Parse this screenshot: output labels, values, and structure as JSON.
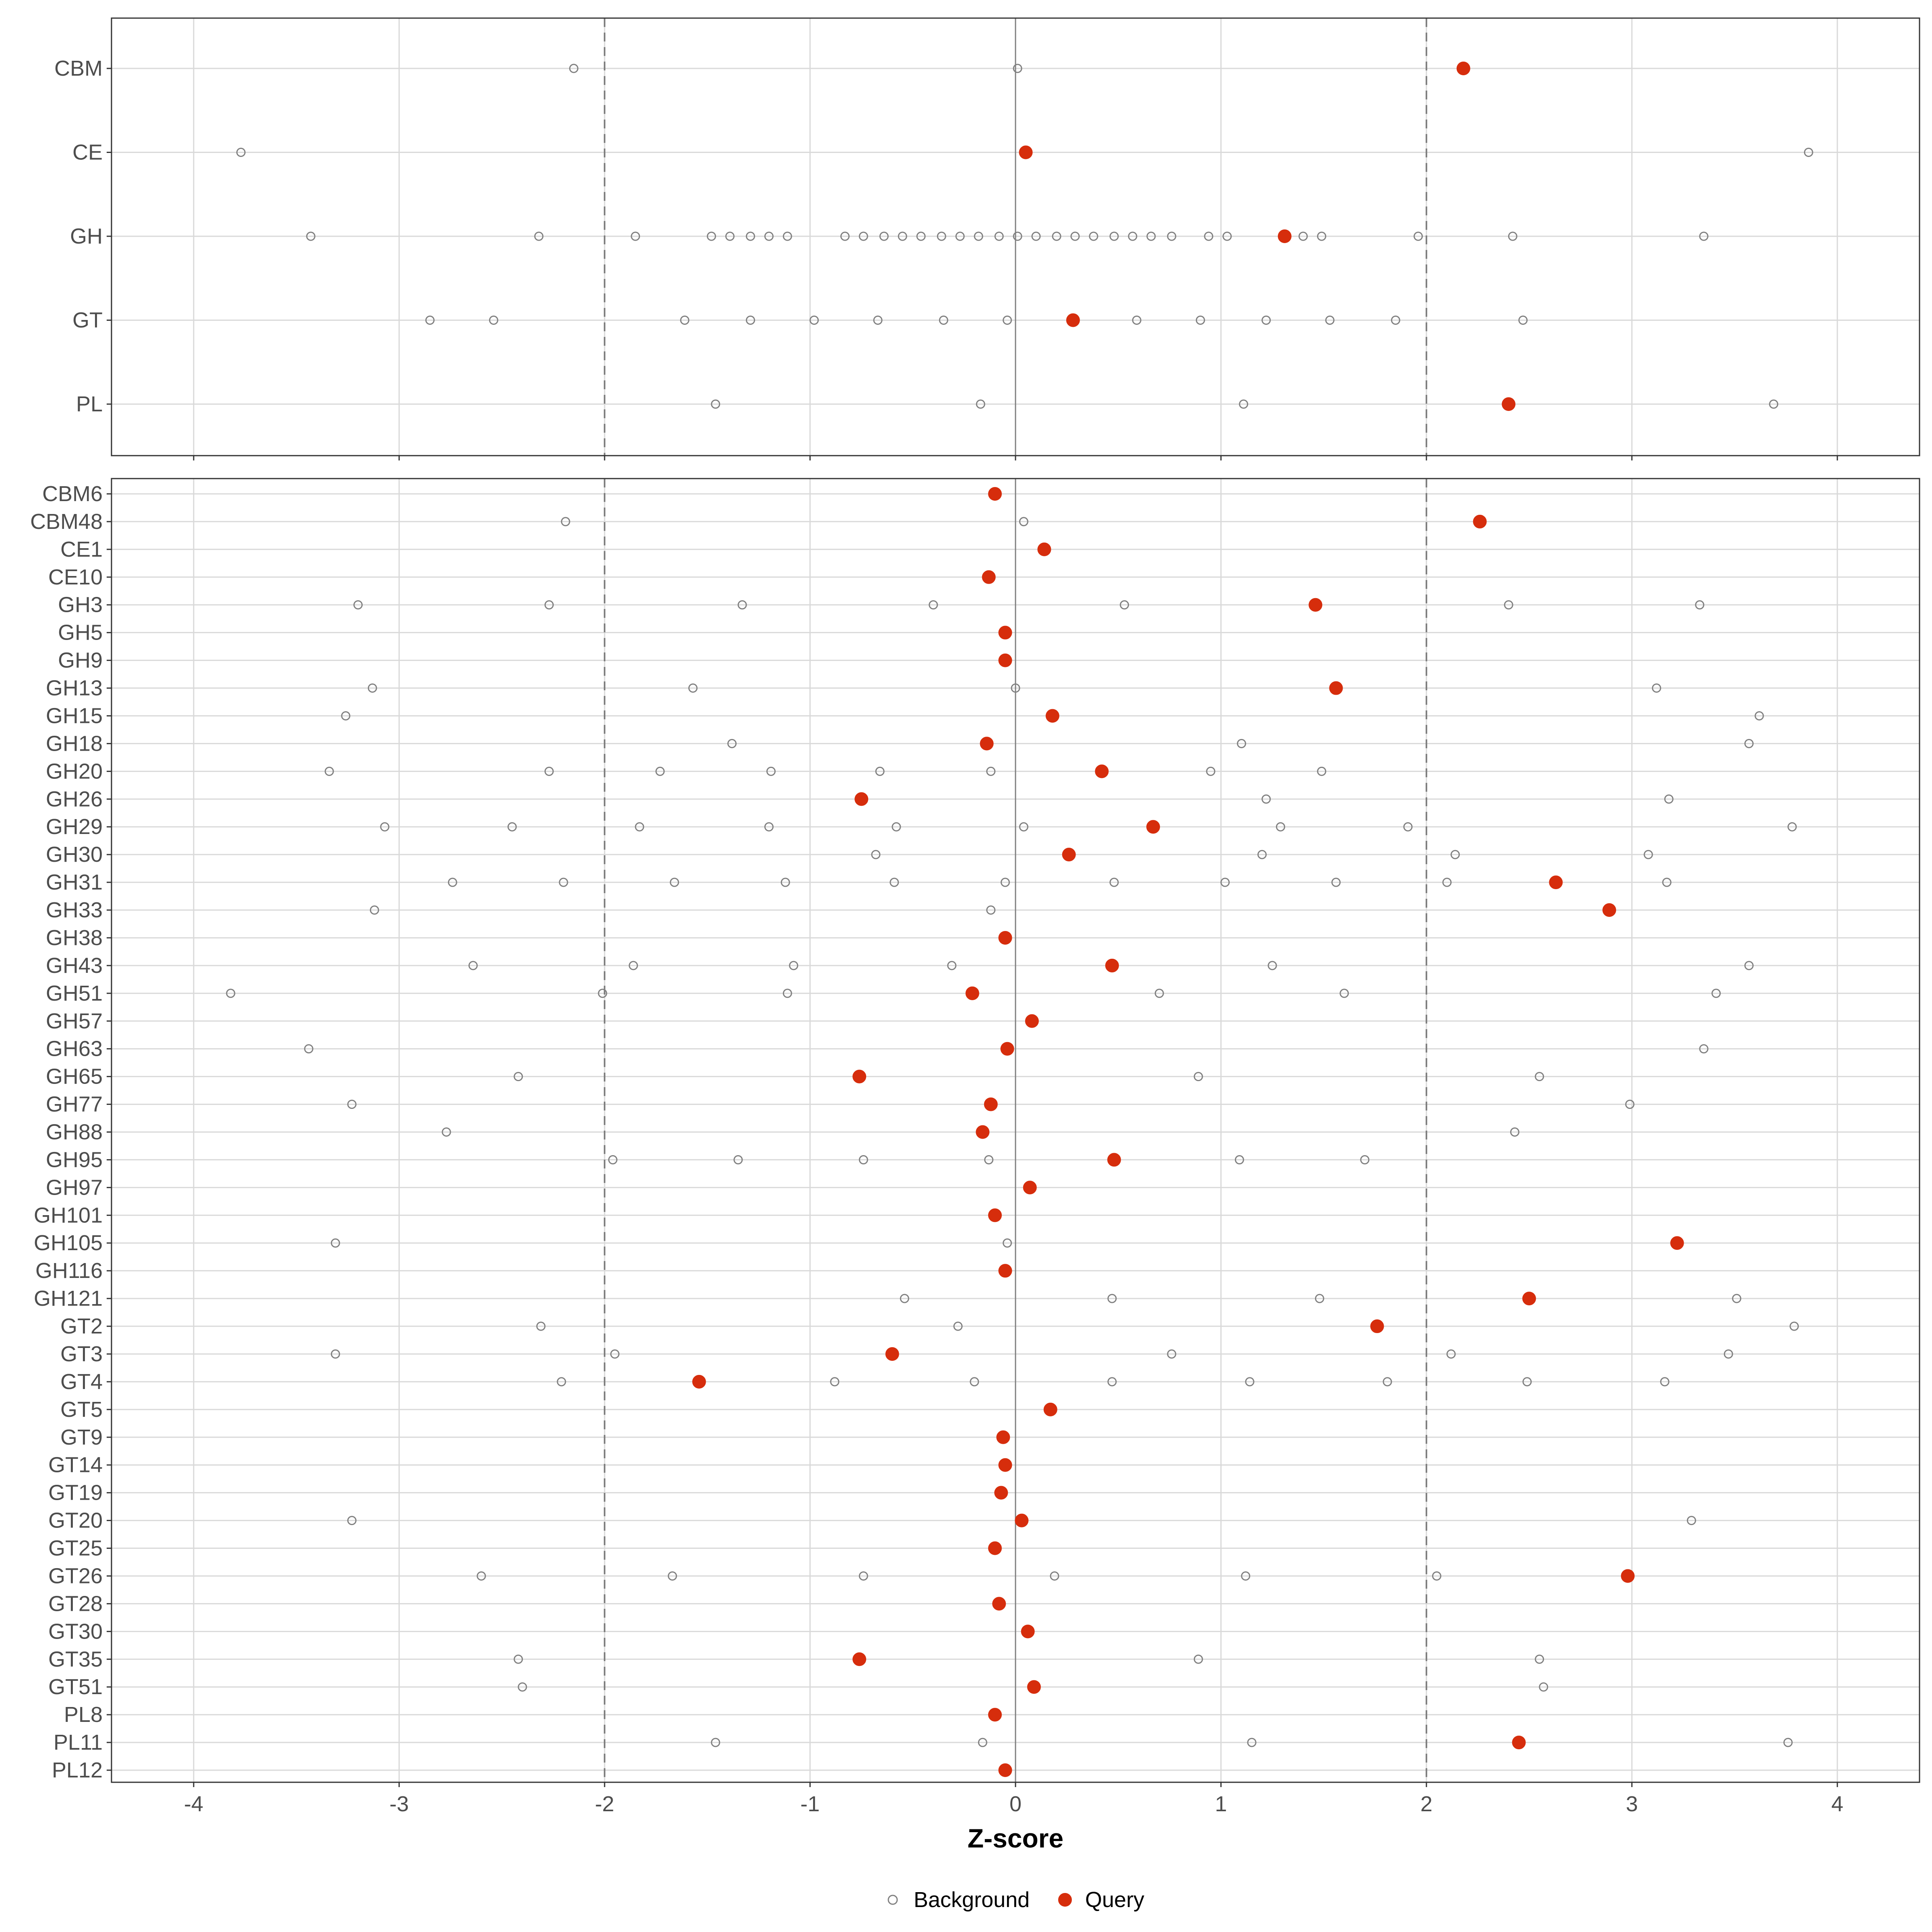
{
  "chart_data": {
    "type": "scatter",
    "xlabel": "Z-score",
    "xlim": [
      -4.4,
      4.4
    ],
    "xticks": [
      -4,
      -3,
      -2,
      -1,
      0,
      1,
      2,
      3,
      4
    ],
    "xtick_labels": [
      "-4",
      "-3",
      "-2",
      "-1",
      "0",
      "1",
      "2",
      "3",
      "4"
    ],
    "reference_lines": [
      {
        "x": -2,
        "style": "dashed"
      },
      {
        "x": 0,
        "style": "solid"
      },
      {
        "x": 2,
        "style": "dashed"
      }
    ],
    "legend": {
      "placement": "bottom",
      "entries": [
        {
          "label": "Background",
          "marker": "open-circle",
          "color": "#808080"
        },
        {
          "label": "Query",
          "marker": "filled-circle",
          "color": "#d62d0c"
        }
      ]
    },
    "colors": {
      "background": "#808080",
      "query": "#d62d0c",
      "grid": "#d9d9d9",
      "reference": "#7f7f7f"
    },
    "panels": [
      {
        "rows": [
          {
            "label": "CBM",
            "background": [
              -2.15,
              0.01
            ],
            "query": 2.18
          },
          {
            "label": "CE",
            "background": [
              -3.77,
              3.86
            ],
            "query": 0.05
          },
          {
            "label": "GH",
            "background": [
              -3.43,
              -2.32,
              -1.85,
              -1.48,
              -1.39,
              -1.29,
              -1.2,
              -1.11,
              -0.83,
              -0.74,
              -0.64,
              -0.55,
              -0.46,
              -0.36,
              -0.27,
              -0.18,
              -0.08,
              0.01,
              0.1,
              0.2,
              0.29,
              0.38,
              0.48,
              0.57,
              0.66,
              0.76,
              0.94,
              1.03,
              1.4,
              1.49,
              1.96,
              2.42,
              3.35
            ],
            "query": 1.31
          },
          {
            "label": "GT",
            "background": [
              -2.85,
              -2.54,
              -1.61,
              -1.29,
              -0.98,
              -0.67,
              -0.35,
              -0.04,
              0.59,
              0.9,
              1.22,
              1.53,
              1.85,
              2.47
            ],
            "query": 0.28
          },
          {
            "label": "PL",
            "background": [
              -1.46,
              -0.17,
              1.11,
              3.69
            ],
            "query": 2.4
          }
        ]
      },
      {
        "rows": [
          {
            "label": "CBM6",
            "background": [],
            "query": -0.1
          },
          {
            "label": "CBM48",
            "background": [
              -2.19,
              0.04
            ],
            "query": 2.26
          },
          {
            "label": "CE1",
            "background": [],
            "query": 0.14
          },
          {
            "label": "CE10",
            "background": [],
            "query": -0.13
          },
          {
            "label": "GH3",
            "background": [
              -3.2,
              -2.27,
              -1.33,
              -0.4,
              0.53,
              2.4,
              3.33
            ],
            "query": 1.46
          },
          {
            "label": "GH5",
            "background": [],
            "query": -0.05
          },
          {
            "label": "GH9",
            "background": [],
            "query": -0.05
          },
          {
            "label": "GH13",
            "background": [
              -3.13,
              -1.57,
              0.0,
              3.12
            ],
            "query": 1.56
          },
          {
            "label": "GH15",
            "background": [
              -3.26,
              3.62
            ],
            "query": 0.18
          },
          {
            "label": "GH18",
            "background": [
              -1.38,
              1.1,
              3.57
            ],
            "query": -0.14
          },
          {
            "label": "GH20",
            "background": [
              -3.34,
              -2.27,
              -1.73,
              -1.19,
              -0.66,
              -0.12,
              0.95,
              1.49
            ],
            "query": 0.42
          },
          {
            "label": "GH26",
            "background": [
              1.22,
              3.18
            ],
            "query": -0.75
          },
          {
            "label": "GH29",
            "background": [
              -3.07,
              -2.45,
              -1.83,
              -1.2,
              -0.58,
              0.04,
              1.29,
              1.91,
              3.78
            ],
            "query": 0.67
          },
          {
            "label": "GH30",
            "background": [
              -0.68,
              1.2,
              2.14,
              3.08
            ],
            "query": 0.26
          },
          {
            "label": "GH31",
            "background": [
              -2.74,
              -2.2,
              -1.66,
              -1.12,
              -0.59,
              -0.05,
              0.48,
              1.02,
              1.56,
              2.1,
              3.17
            ],
            "query": 2.63
          },
          {
            "label": "GH33",
            "background": [
              -3.12,
              -0.12
            ],
            "query": 2.89
          },
          {
            "label": "GH38",
            "background": [],
            "query": -0.05
          },
          {
            "label": "GH43",
            "background": [
              -2.64,
              -1.86,
              -1.08,
              -0.31,
              1.25,
              3.57
            ],
            "query": 0.47
          },
          {
            "label": "GH51",
            "background": [
              -3.82,
              -2.01,
              -1.11,
              0.7,
              1.6,
              3.41
            ],
            "query": -0.21
          },
          {
            "label": "GH57",
            "background": [],
            "query": 0.08
          },
          {
            "label": "GH63",
            "background": [
              -3.44,
              3.35
            ],
            "query": -0.04
          },
          {
            "label": "GH65",
            "background": [
              -2.42,
              0.89,
              2.55
            ],
            "query": -0.76
          },
          {
            "label": "GH77",
            "background": [
              -3.23,
              2.99
            ],
            "query": -0.12
          },
          {
            "label": "GH88",
            "background": [
              -2.77,
              2.43
            ],
            "query": -0.16
          },
          {
            "label": "GH95",
            "background": [
              -1.96,
              -1.35,
              -0.74,
              -0.13,
              1.09,
              1.7
            ],
            "query": 0.48
          },
          {
            "label": "GH97",
            "background": [],
            "query": 0.07
          },
          {
            "label": "GH101",
            "background": [],
            "query": -0.1
          },
          {
            "label": "GH105",
            "background": [
              -3.31,
              -0.04
            ],
            "query": 3.22
          },
          {
            "label": "GH116",
            "background": [],
            "query": -0.05
          },
          {
            "label": "GH121",
            "background": [
              -0.54,
              0.47,
              1.48,
              3.51
            ],
            "query": 2.5
          },
          {
            "label": "GT2",
            "background": [
              -2.31,
              -0.28,
              3.79
            ],
            "query": 1.76
          },
          {
            "label": "GT3",
            "background": [
              -3.31,
              -1.95,
              0.76,
              2.12,
              3.47
            ],
            "query": -0.6
          },
          {
            "label": "GT4",
            "background": [
              -2.21,
              -0.88,
              -0.2,
              0.47,
              1.14,
              1.81,
              2.49,
              3.16
            ],
            "query": -1.54
          },
          {
            "label": "GT5",
            "background": [],
            "query": 0.17
          },
          {
            "label": "GT9",
            "background": [],
            "query": -0.06
          },
          {
            "label": "GT14",
            "background": [],
            "query": -0.05
          },
          {
            "label": "GT19",
            "background": [],
            "query": -0.07
          },
          {
            "label": "GT20",
            "background": [
              -3.23,
              3.29
            ],
            "query": 0.03
          },
          {
            "label": "GT25",
            "background": [],
            "query": -0.1
          },
          {
            "label": "GT26",
            "background": [
              -2.6,
              -1.67,
              -0.74,
              0.19,
              1.12,
              2.05
            ],
            "query": 2.98
          },
          {
            "label": "GT28",
            "background": [],
            "query": -0.08
          },
          {
            "label": "GT30",
            "background": [],
            "query": 0.06
          },
          {
            "label": "GT35",
            "background": [
              -2.42,
              0.89,
              2.55
            ],
            "query": -0.76
          },
          {
            "label": "GT51",
            "background": [
              -2.4,
              2.57
            ],
            "query": 0.09
          },
          {
            "label": "PL8",
            "background": [],
            "query": -0.1
          },
          {
            "label": "PL11",
            "background": [
              -1.46,
              -0.16,
              1.15,
              3.76
            ],
            "query": 2.45
          },
          {
            "label": "PL12",
            "background": [],
            "query": -0.05
          }
        ]
      }
    ]
  }
}
